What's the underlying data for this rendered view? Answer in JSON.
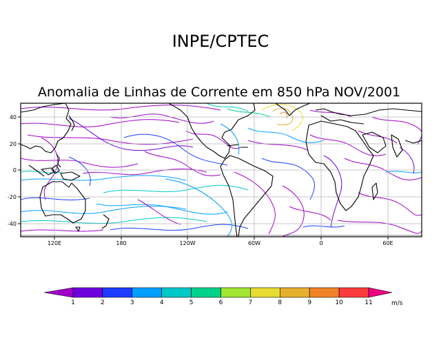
{
  "header": {
    "org": "INPE/CPTEC",
    "title": "Anomalia de Linhas de Corrente em 850 hPa NOV/2001"
  },
  "map": {
    "lat_ticks": [
      "40",
      "20",
      "0",
      "-20",
      "-40"
    ],
    "lon_ticks": [
      "120E",
      "180",
      "120W",
      "60W",
      "0",
      "60E"
    ]
  },
  "colorbar": {
    "levels": [
      "1",
      "2",
      "3",
      "4",
      "5",
      "6",
      "7",
      "8",
      "9",
      "10",
      "11"
    ],
    "units": "m/s",
    "colors": [
      "#a000c8",
      "#6e00dc",
      "#1e3cff",
      "#00a0ff",
      "#00c8c8",
      "#00d28c",
      "#a0e632",
      "#e6dc32",
      "#e6af2d",
      "#f08228",
      "#fa3c3c",
      "#f00082"
    ]
  }
}
